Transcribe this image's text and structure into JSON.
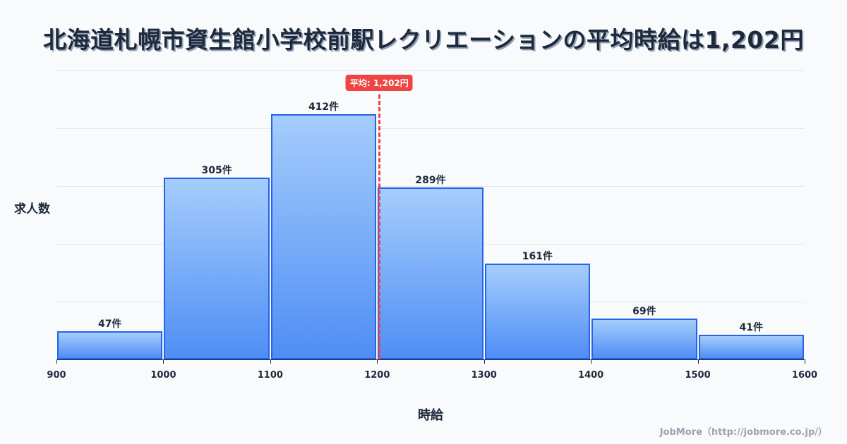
{
  "title": "北海道札幌市資生館小学校前駅レクリエーションの平均時給は1,202円",
  "mean_badge": "平均: 1,202円",
  "ylabel": "求人数",
  "xlabel": "時給",
  "credit": "JobMore（http://jobmore.co.jp/）",
  "colors": {
    "bar_fill_top": "#a5cdfc",
    "bar_fill_bottom": "#4f8ef5",
    "bar_border": "#2563eb",
    "mean": "#ef4444",
    "text": "#1e293b"
  },
  "chart_data": {
    "type": "bar",
    "title": "北海道札幌市資生館小学校前駅レクリエーションの平均時給は1,202円",
    "xlabel": "時給",
    "ylabel": "求人数",
    "bins": [
      [
        900,
        1000
      ],
      [
        1000,
        1100
      ],
      [
        1100,
        1200
      ],
      [
        1200,
        1300
      ],
      [
        1300,
        1400
      ],
      [
        1400,
        1500
      ],
      [
        1500,
        1600
      ]
    ],
    "categories": [
      "900-1000",
      "1000-1100",
      "1100-1200",
      "1200-1300",
      "1300-1400",
      "1400-1500",
      "1500-1600"
    ],
    "values": [
      47,
      305,
      412,
      289,
      161,
      69,
      41
    ],
    "value_labels": [
      "47件",
      "305件",
      "412件",
      "289件",
      "161件",
      "69件",
      "41件"
    ],
    "x_ticks": [
      "900",
      "1000",
      "1100",
      "1200",
      "1300",
      "1400",
      "1500",
      "1600"
    ],
    "xlim": [
      900,
      1600
    ],
    "ylim": [
      0,
      485
    ],
    "mean": 1202,
    "mean_label": "平均: 1,202円",
    "grid": true,
    "legend": "none"
  }
}
